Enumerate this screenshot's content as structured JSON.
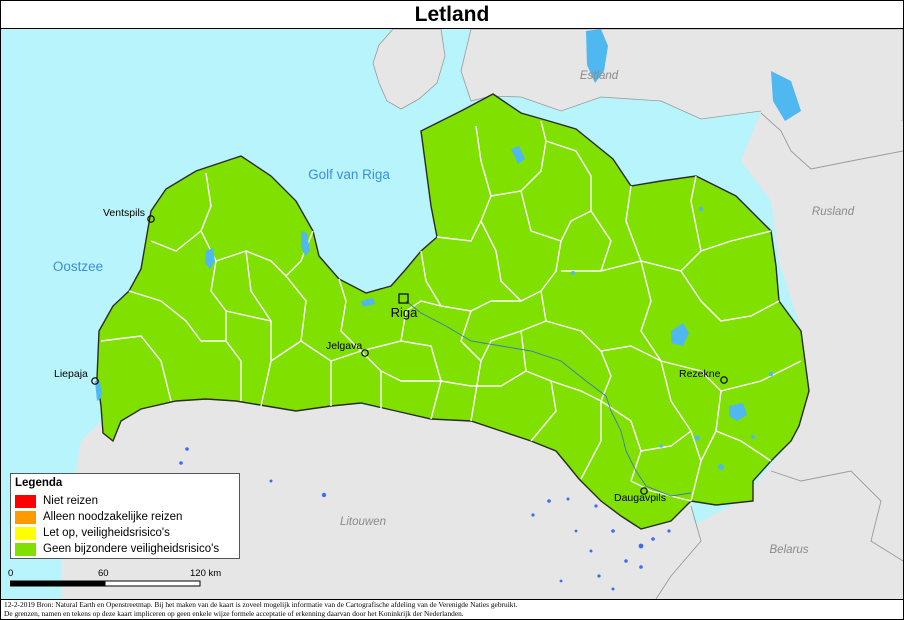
{
  "title": "Letland",
  "labels": {
    "golf": "Golf van Riga",
    "oostzee": "Oostzee",
    "estland": "Estland",
    "rusland": "Rusland",
    "litouwen": "Litouwen",
    "belarus": "Belarus"
  },
  "cities": {
    "riga": "Riga",
    "ventspils": "Ventspils",
    "liepaja": "Liepaja",
    "jelgava": "Jelgava",
    "rezekne": "Rezekne",
    "daugavpils": "Daugavpils"
  },
  "legend": {
    "title": "Legenda",
    "items": [
      {
        "label": "Niet reizen",
        "color": "#ff0000"
      },
      {
        "label": "Alleen noodzakelijke reizen",
        "color": "#ff9900"
      },
      {
        "label": "Let op, veiligheidsrisico's",
        "color": "#ffff00"
      },
      {
        "label": "Geen bijzondere veiligheidsrisico's",
        "color": "#80e000"
      }
    ]
  },
  "scale": {
    "tick0": "0",
    "tick1": "60",
    "tick2": "120 km"
  },
  "footer": {
    "line1": "12-2-2019 Bron: Natural Earth en Openstreetmap. Bij het maken van de kaart is zoveel mogelijk informatie van de Cartografische afdeling van de Verenigde Naties gebruikt.",
    "line2": "De grenzen, namen en tekens op deze kaart impliceren op geen enkele wijze formele acceptatie of erkenning daarvan door het Koninkrijk der Nederlanden."
  },
  "colors": {
    "sea": "#b8f4fb",
    "land": "#e6e6e6",
    "country": "#80e000",
    "water": "#4fb8f0",
    "label_blue": "#3c8fd8",
    "label_gray": "#8a8a8a"
  }
}
